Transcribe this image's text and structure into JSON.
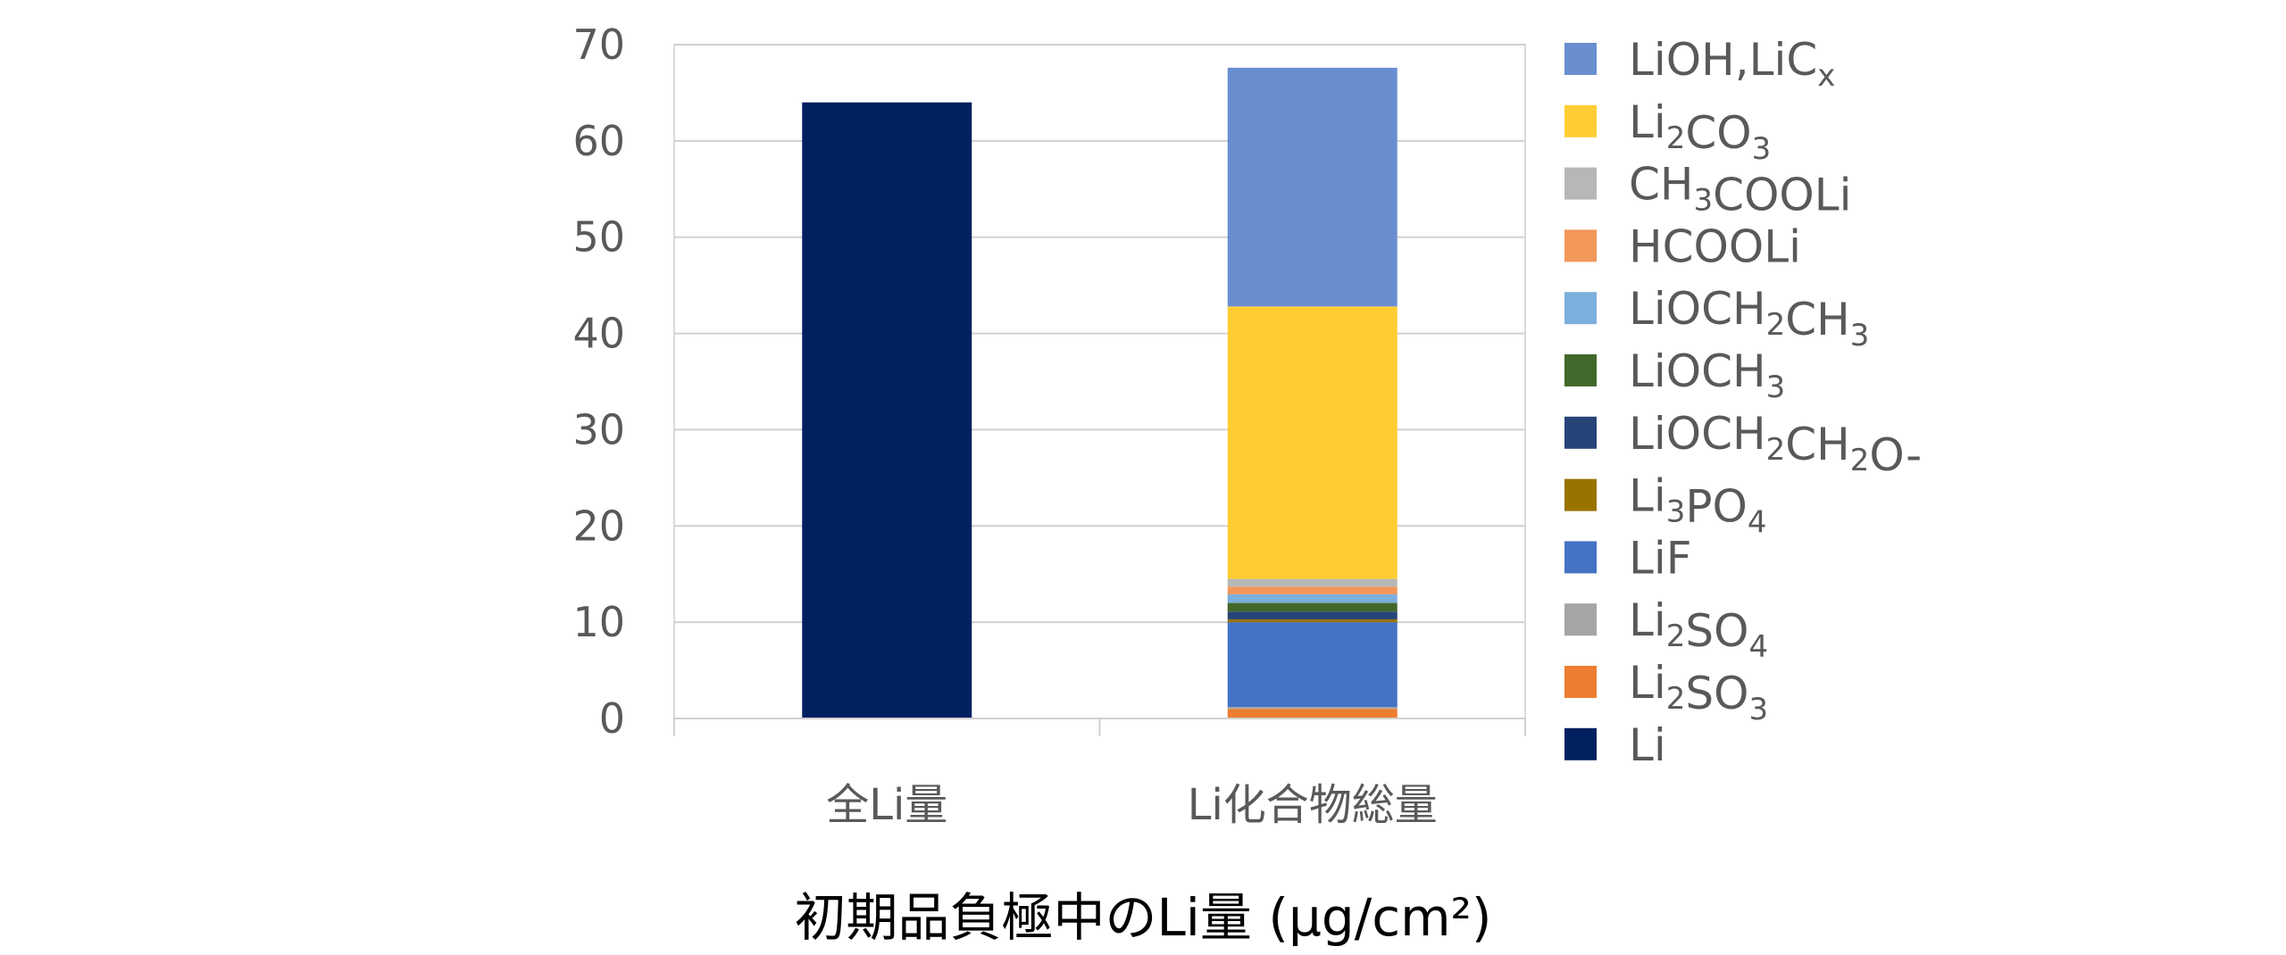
{
  "chart_data": {
    "type": "bar",
    "stacked": true,
    "title": "初期品負極中のLi量 (μg/cm²)",
    "xlabel": "初期品負極中のLi量 (μg/cm²)",
    "ylabel": "",
    "ylim": [
      0,
      70
    ],
    "yticks": [
      0,
      10,
      20,
      30,
      40,
      50,
      60,
      70
    ],
    "grid": true,
    "legend_position": "right",
    "categories": [
      "全Li量",
      "Li化合物総量"
    ],
    "series": [
      {
        "name": "Li",
        "label_parts": [
          [
            "Li",
            ""
          ]
        ],
        "color": "#002060",
        "values": [
          64.0,
          0
        ]
      },
      {
        "name": "Li2SO3",
        "label_parts": [
          [
            "Li",
            ""
          ],
          [
            "2",
            "sub"
          ],
          [
            "SO",
            ""
          ],
          [
            "3",
            "sub"
          ]
        ],
        "color": "#ED7D31",
        "values": [
          0,
          1.0
        ]
      },
      {
        "name": "Li2SO4",
        "label_parts": [
          [
            "Li",
            ""
          ],
          [
            "2",
            "sub"
          ],
          [
            "SO",
            ""
          ],
          [
            "4",
            "sub"
          ]
        ],
        "color": "#A5A5A5",
        "values": [
          0,
          0.2
        ]
      },
      {
        "name": "LiF",
        "label_parts": [
          [
            "LiF",
            ""
          ]
        ],
        "color": "#4472C4",
        "values": [
          0,
          8.8
        ]
      },
      {
        "name": "Li3PO4",
        "label_parts": [
          [
            "Li",
            ""
          ],
          [
            "3",
            "sub"
          ],
          [
            "PO",
            ""
          ],
          [
            "4",
            "sub"
          ]
        ],
        "color": "#997300",
        "values": [
          0,
          0.3
        ]
      },
      {
        "name": "LiOCH2CH2O-",
        "label_parts": [
          [
            "LiOCH",
            ""
          ],
          [
            "2",
            "sub"
          ],
          [
            "CH",
            ""
          ],
          [
            "2",
            "sub"
          ],
          [
            "O-",
            ""
          ]
        ],
        "color": "#264478",
        "values": [
          0,
          0.8
        ]
      },
      {
        "name": "LiOCH3",
        "label_parts": [
          [
            "LiOCH",
            ""
          ],
          [
            "3",
            "sub"
          ]
        ],
        "color": "#43682B",
        "values": [
          0,
          0.9
        ]
      },
      {
        "name": "LiOCH2CH3",
        "label_parts": [
          [
            "LiOCH",
            ""
          ],
          [
            "2",
            "sub"
          ],
          [
            "CH",
            ""
          ],
          [
            "3",
            "sub"
          ]
        ],
        "color": "#7CAFDD",
        "values": [
          0,
          0.9
        ]
      },
      {
        "name": "HCOOLi",
        "label_parts": [
          [
            "HCOOLi",
            ""
          ]
        ],
        "color": "#F1975A",
        "values": [
          0,
          0.8
        ]
      },
      {
        "name": "CH3COOLi",
        "label_parts": [
          [
            "CH",
            ""
          ],
          [
            "3",
            "sub"
          ],
          [
            "COOLi",
            ""
          ]
        ],
        "color": "#B7B7B7",
        "values": [
          0,
          0.8
        ]
      },
      {
        "name": "Li2CO3",
        "label_parts": [
          [
            "Li",
            ""
          ],
          [
            "2",
            "sub"
          ],
          [
            "CO",
            ""
          ],
          [
            "3",
            "sub"
          ]
        ],
        "color": "#FFCD33",
        "values": [
          0,
          28.3
        ]
      },
      {
        "name": "LiOH,LiCx",
        "label_parts": [
          [
            "LiOH,LiC",
            ""
          ],
          [
            "x",
            "sub"
          ]
        ],
        "color": "#698ED0",
        "values": [
          0,
          24.8
        ]
      }
    ]
  }
}
